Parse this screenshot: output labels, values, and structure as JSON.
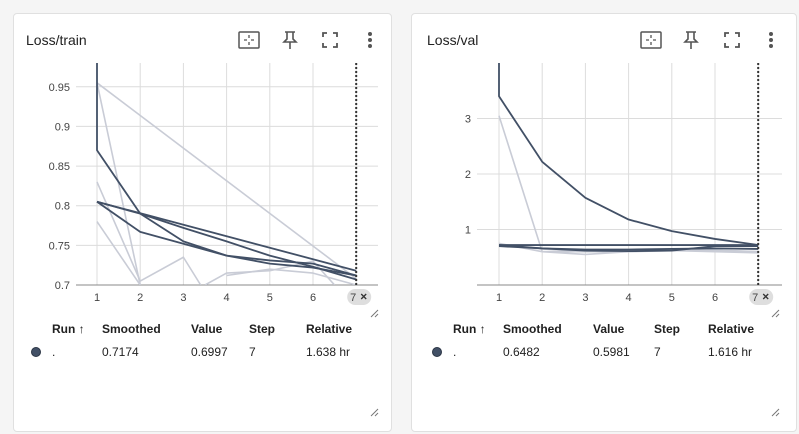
{
  "cards": [
    {
      "title": "Loss/train",
      "y_ticks": [
        "0.95",
        "0.9",
        "0.85",
        "0.8",
        "0.75",
        "0.7"
      ],
      "x_ticks": [
        "1",
        "2",
        "3",
        "4",
        "5",
        "6"
      ],
      "step_chip": "7",
      "table": {
        "headers": [
          "Run",
          "Smoothed",
          "Value",
          "Step",
          "Relative"
        ],
        "sort_arrow": "↑",
        "row": {
          "run": ".",
          "smoothed": "0.7174",
          "value": "0.6997",
          "step": "7",
          "relative": "1.638 hr"
        }
      }
    },
    {
      "title": "Loss/val",
      "y_ticks": [
        "3",
        "2",
        "1"
      ],
      "x_ticks": [
        "1",
        "2",
        "3",
        "4",
        "5",
        "6"
      ],
      "step_chip": "7",
      "table": {
        "headers": [
          "Run",
          "Smoothed",
          "Value",
          "Step",
          "Relative"
        ],
        "sort_arrow": "↑",
        "row": {
          "run": ".",
          "smoothed": "0.6482",
          "value": "0.5981",
          "step": "7",
          "relative": "1.616 hr"
        }
      }
    }
  ],
  "colors": {
    "smoothed": "#425066",
    "raw": "#c9ccd6",
    "grid": "#dcdcdc",
    "axis": "#333333"
  },
  "icons": [
    "fit-domain-icon",
    "pin-icon",
    "fullscreen-icon",
    "more-vert-icon",
    "close-icon",
    "resize-handle-icon"
  ],
  "chart_data": [
    {
      "type": "line",
      "title": "Loss/train",
      "xlabel": "",
      "ylabel": "",
      "xlim": [
        0.5,
        7.5
      ],
      "ylim": [
        0.7,
        0.98
      ],
      "series": [
        {
          "style": "smoothed",
          "x": [
            1,
            1,
            2,
            3,
            4,
            5,
            6,
            7
          ],
          "y": [
            0.98,
            0.87,
            0.79,
            0.755,
            0.737,
            0.727,
            0.722,
            0.712
          ]
        },
        {
          "style": "smoothed",
          "x": [
            1,
            2,
            3,
            4,
            5,
            6,
            7
          ],
          "y": [
            0.805,
            0.79,
            0.772,
            0.755,
            0.737,
            0.723,
            0.707
          ]
        },
        {
          "style": "smoothed",
          "x": [
            1,
            2,
            3,
            4,
            5,
            6,
            7
          ],
          "y": [
            0.805,
            0.767,
            0.752,
            0.737,
            0.731,
            0.727,
            0.712
          ]
        },
        {
          "style": "smoothed",
          "x": [
            1,
            7
          ],
          "y": [
            0.805,
            0.718
          ]
        },
        {
          "style": "raw",
          "x": [
            1,
            7
          ],
          "y": [
            0.955,
            0.708
          ]
        },
        {
          "style": "raw",
          "x": [
            1,
            2
          ],
          "y": [
            0.955,
            0.7
          ]
        },
        {
          "style": "raw",
          "x": [
            1,
            2,
            3,
            3.4
          ],
          "y": [
            0.83,
            0.705,
            0.735,
            0.7
          ]
        },
        {
          "style": "raw",
          "x": [
            1,
            2
          ],
          "y": [
            0.78,
            0.7
          ]
        },
        {
          "style": "raw",
          "x": [
            3.5,
            4,
            5,
            6,
            6.5
          ],
          "y": [
            0.7,
            0.715,
            0.718,
            0.73,
            0.7
          ]
        },
        {
          "style": "raw",
          "x": [
            4,
            5,
            6,
            7
          ],
          "y": [
            0.712,
            0.72,
            0.715,
            0.7
          ]
        }
      ]
    },
    {
      "type": "line",
      "title": "Loss/val",
      "xlabel": "",
      "ylabel": "",
      "xlim": [
        0.5,
        7.5
      ],
      "ylim": [
        0,
        4
      ],
      "series": [
        {
          "style": "smoothed",
          "x": [
            1,
            1,
            2,
            3,
            4,
            5,
            6,
            7
          ],
          "y": [
            4,
            3.4,
            2.22,
            1.57,
            1.18,
            0.97,
            0.83,
            0.72
          ]
        },
        {
          "style": "smoothed",
          "x": [
            1,
            2,
            3,
            4,
            5,
            6,
            7
          ],
          "y": [
            0.72,
            0.72,
            0.72,
            0.72,
            0.72,
            0.72,
            0.72
          ]
        },
        {
          "style": "smoothed",
          "x": [
            1,
            2,
            3,
            4,
            5,
            6,
            7
          ],
          "y": [
            0.72,
            0.66,
            0.62,
            0.61,
            0.62,
            0.7,
            0.7
          ]
        },
        {
          "style": "smoothed",
          "x": [
            1,
            2,
            3,
            4,
            5,
            6,
            7
          ],
          "y": [
            0.7,
            0.66,
            0.64,
            0.64,
            0.65,
            0.66,
            0.65
          ]
        },
        {
          "style": "raw",
          "x": [
            1,
            2,
            3,
            4,
            5,
            6,
            7
          ],
          "y": [
            3.05,
            0.6,
            0.55,
            0.6,
            0.62,
            0.6,
            0.58
          ]
        },
        {
          "style": "raw",
          "x": [
            1,
            2,
            3,
            4,
            5,
            6,
            7
          ],
          "y": [
            0.75,
            0.6,
            0.6,
            0.63,
            0.62,
            0.62,
            0.6
          ]
        },
        {
          "style": "raw",
          "x": [
            1,
            2,
            3,
            4,
            5,
            6,
            7
          ],
          "y": [
            0.72,
            0.65,
            0.6,
            0.6,
            0.64,
            0.63,
            0.6
          ]
        }
      ]
    }
  ]
}
